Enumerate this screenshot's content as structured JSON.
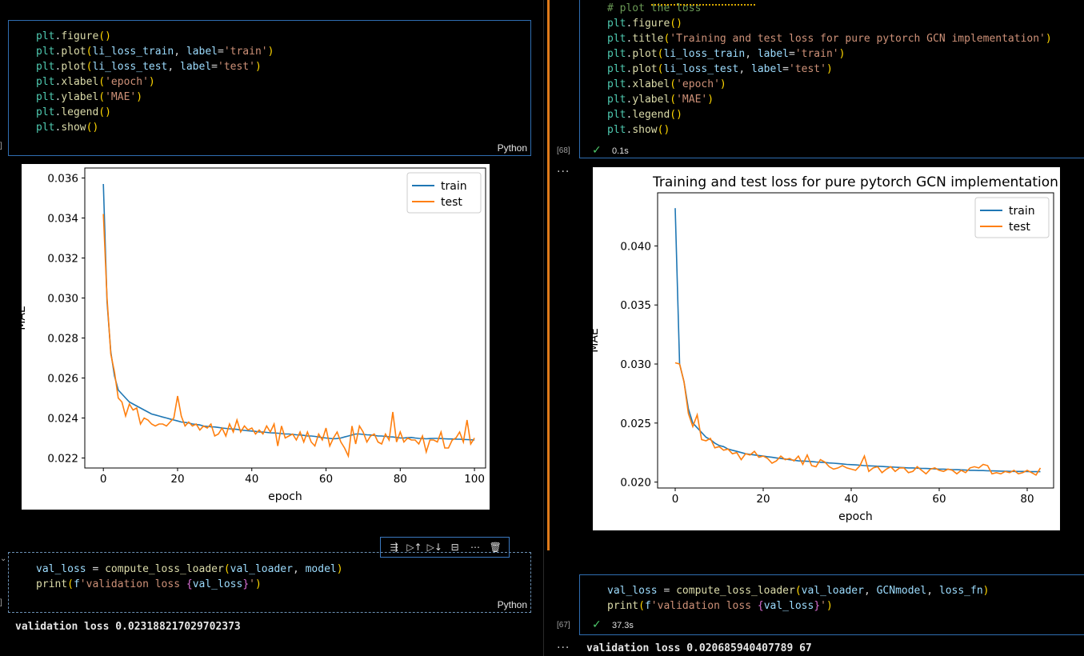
{
  "left": {
    "cell1": {
      "lines": [
        [
          [
            "plt",
            "obj"
          ],
          [
            ".",
            "dot"
          ],
          [
            "figure",
            "fn"
          ],
          [
            "()",
            "p"
          ]
        ],
        [
          [
            "plt",
            "obj"
          ],
          [
            ".",
            "dot"
          ],
          [
            "plot",
            "fn"
          ],
          [
            "(",
            "p"
          ],
          [
            "li_loss_train",
            "var"
          ],
          [
            ", ",
            "dot"
          ],
          [
            "label",
            "var"
          ],
          [
            "=",
            "dot"
          ],
          [
            "'train'",
            "str"
          ],
          [
            ")",
            "p"
          ]
        ],
        [
          [
            "plt",
            "obj"
          ],
          [
            ".",
            "dot"
          ],
          [
            "plot",
            "fn"
          ],
          [
            "(",
            "p"
          ],
          [
            "li_loss_test",
            "var"
          ],
          [
            ", ",
            "dot"
          ],
          [
            "label",
            "var"
          ],
          [
            "=",
            "dot"
          ],
          [
            "'test'",
            "str"
          ],
          [
            ")",
            "p"
          ]
        ],
        [
          [
            "plt",
            "obj"
          ],
          [
            ".",
            "dot"
          ],
          [
            "xlabel",
            "fn"
          ],
          [
            "(",
            "p"
          ],
          [
            "'epoch'",
            "str"
          ],
          [
            ")",
            "p"
          ]
        ],
        [
          [
            "plt",
            "obj"
          ],
          [
            ".",
            "dot"
          ],
          [
            "ylabel",
            "fn"
          ],
          [
            "(",
            "p"
          ],
          [
            "'MAE'",
            "str"
          ],
          [
            ")",
            "p"
          ]
        ],
        [
          [
            "plt",
            "obj"
          ],
          [
            ".",
            "dot"
          ],
          [
            "legend",
            "fn"
          ],
          [
            "()",
            "p"
          ]
        ],
        [
          [
            "plt",
            "obj"
          ],
          [
            ".",
            "dot"
          ],
          [
            "show",
            "fn"
          ],
          [
            "()",
            "p"
          ]
        ]
      ],
      "language": "Python",
      "bracket": "]"
    },
    "cell2": {
      "lines": [
        [
          [
            "val_loss",
            "var"
          ],
          [
            " = ",
            "dot"
          ],
          [
            "compute_loss_loader",
            "fn"
          ],
          [
            "(",
            "p"
          ],
          [
            "val_loader",
            "var"
          ],
          [
            ", ",
            "dot"
          ],
          [
            "model",
            "var"
          ],
          [
            ")",
            "p"
          ]
        ],
        [
          [
            "print",
            "fn"
          ],
          [
            "(",
            "p"
          ],
          [
            "f",
            "var"
          ],
          [
            "'validation loss ",
            "str"
          ],
          [
            "{",
            "p2"
          ],
          [
            "val_loss",
            "var"
          ],
          [
            "}",
            "p2"
          ],
          [
            "'",
            "str"
          ],
          [
            ")",
            "p"
          ]
        ]
      ],
      "language": "Python",
      "bracket": "]",
      "output": "validation loss 0.023188217029702373"
    },
    "toolbar": {
      "buttons": [
        {
          "name": "run-above-icon",
          "glyph": "⇶"
        },
        {
          "name": "execute-above-icon",
          "glyph": "▷↑"
        },
        {
          "name": "execute-below-icon",
          "glyph": "▷↓"
        },
        {
          "name": "split-cell-icon",
          "glyph": "⊟"
        },
        {
          "name": "more-actions-icon",
          "glyph": "⋯"
        },
        {
          "name": "delete-cell-icon",
          "glyph": "🗑"
        }
      ]
    }
  },
  "right": {
    "cell1": {
      "lines": [
        [
          [
            "# plot the loss",
            "cm"
          ]
        ],
        [
          [
            "plt",
            "obj"
          ],
          [
            ".",
            "dot"
          ],
          [
            "figure",
            "fn"
          ],
          [
            "()",
            "p"
          ]
        ],
        [
          [
            "plt",
            "obj"
          ],
          [
            ".",
            "dot"
          ],
          [
            "title",
            "fn"
          ],
          [
            "(",
            "p"
          ],
          [
            "'Training and test loss for pure pytorch GCN implementation'",
            "str"
          ],
          [
            ")",
            "p"
          ]
        ],
        [
          [
            "plt",
            "obj"
          ],
          [
            ".",
            "dot"
          ],
          [
            "plot",
            "fn"
          ],
          [
            "(",
            "p"
          ],
          [
            "li_loss_train",
            "var"
          ],
          [
            ", ",
            "dot"
          ],
          [
            "label",
            "var"
          ],
          [
            "=",
            "dot"
          ],
          [
            "'train'",
            "str"
          ],
          [
            ")",
            "p"
          ]
        ],
        [
          [
            "plt",
            "obj"
          ],
          [
            ".",
            "dot"
          ],
          [
            "plot",
            "fn"
          ],
          [
            "(",
            "p"
          ],
          [
            "li_loss_test",
            "var"
          ],
          [
            ", ",
            "dot"
          ],
          [
            "label",
            "var"
          ],
          [
            "=",
            "dot"
          ],
          [
            "'test'",
            "str"
          ],
          [
            ")",
            "p"
          ]
        ],
        [
          [
            "plt",
            "obj"
          ],
          [
            ".",
            "dot"
          ],
          [
            "xlabel",
            "fn"
          ],
          [
            "(",
            "p"
          ],
          [
            "'epoch'",
            "str"
          ],
          [
            ")",
            "p"
          ]
        ],
        [
          [
            "plt",
            "obj"
          ],
          [
            ".",
            "dot"
          ],
          [
            "ylabel",
            "fn"
          ],
          [
            "(",
            "p"
          ],
          [
            "'MAE'",
            "str"
          ],
          [
            ")",
            "p"
          ]
        ],
        [
          [
            "plt",
            "obj"
          ],
          [
            ".",
            "dot"
          ],
          [
            "legend",
            "fn"
          ],
          [
            "()",
            "p"
          ]
        ],
        [
          [
            "plt",
            "obj"
          ],
          [
            ".",
            "dot"
          ],
          [
            "show",
            "fn"
          ],
          [
            "()",
            "p"
          ]
        ]
      ],
      "exec_count": "[68]",
      "time": "0.1s",
      "output_dots": "···"
    },
    "cell2": {
      "lines": [
        [
          [
            "val_loss",
            "var"
          ],
          [
            " = ",
            "dot"
          ],
          [
            "compute_loss_loader",
            "fn"
          ],
          [
            "(",
            "p"
          ],
          [
            "val_loader",
            "var"
          ],
          [
            ", ",
            "dot"
          ],
          [
            "GCNmodel",
            "var"
          ],
          [
            ", ",
            "dot"
          ],
          [
            "loss_fn",
            "var"
          ],
          [
            ")",
            "p"
          ]
        ],
        [
          [
            "print",
            "fn"
          ],
          [
            "(",
            "p"
          ],
          [
            "f",
            "var"
          ],
          [
            "'validation loss ",
            "str"
          ],
          [
            "{",
            "p2"
          ],
          [
            "val_loss",
            "var"
          ],
          [
            "}",
            "p2"
          ],
          [
            "'",
            "str"
          ],
          [
            ")",
            "p"
          ]
        ]
      ],
      "exec_count": "[67]",
      "time": "37.3s",
      "output_dots": "···",
      "output": "validation loss 0.020685940407789 67"
    }
  },
  "colors": {
    "train": "#1f77b4",
    "test": "#ff7f0e",
    "cell_border": "#2f6db0",
    "divider": "#e07b1a"
  },
  "chart_data": [
    {
      "type": "line",
      "title": "",
      "xlabel": "epoch",
      "ylabel": "MAE",
      "xlim": [
        -5,
        103
      ],
      "ylim": [
        0.0215,
        0.0365
      ],
      "xticks": [
        0,
        20,
        40,
        60,
        80,
        100
      ],
      "xtick_labels": [
        "0",
        "20",
        "40",
        "60",
        "80",
        "100"
      ],
      "yticks": [
        0.022,
        0.024,
        0.026,
        0.028,
        0.03,
        0.032,
        0.034,
        0.036
      ],
      "ytick_labels": [
        "0.022",
        "0.024",
        "0.026",
        "0.028",
        "0.030",
        "0.032",
        "0.034",
        "0.036"
      ],
      "legend": "top-right",
      "series": [
        {
          "name": "train",
          "color": "#1f77b4",
          "values": [
            0.0357,
            0.0298,
            0.0273,
            0.0261,
            0.0254,
            0.0252,
            0.025,
            0.0248,
            0.0247,
            0.0246,
            0.0245,
            0.0244,
            0.0243,
            0.0242,
            0.02415,
            0.0241,
            0.02405,
            0.024,
            0.02395,
            0.0239,
            0.02385,
            0.0238,
            0.02378,
            0.02375,
            0.0237,
            0.02368,
            0.02365,
            0.0236,
            0.02358,
            0.02356,
            0.02355,
            0.02353,
            0.0235,
            0.02348,
            0.02346,
            0.02345,
            0.02343,
            0.0234,
            0.02338,
            0.02336,
            0.02335,
            0.02333,
            0.0233,
            0.0233,
            0.02328,
            0.02326,
            0.02325,
            0.02324,
            0.02322,
            0.0232,
            0.0232,
            0.02318,
            0.02316,
            0.02315,
            0.02313,
            0.0231,
            0.0231,
            0.02308,
            0.02305,
            0.02302,
            0.023,
            0.02298,
            0.02296,
            0.02297,
            0.023,
            0.02305,
            0.0231,
            0.02315,
            0.0232,
            0.0232,
            0.02318,
            0.02316,
            0.02315,
            0.02313,
            0.0231,
            0.0231,
            0.02308,
            0.02306,
            0.02305,
            0.02303,
            0.023,
            0.023,
            0.02302,
            0.02303,
            0.023,
            0.02298,
            0.02297,
            0.02296,
            0.02297,
            0.02298,
            0.02298,
            0.02297,
            0.02296,
            0.02295,
            0.02295,
            0.02294,
            0.02294,
            0.02293,
            0.02292,
            0.02291,
            0.0229
          ]
        },
        {
          "name": "test",
          "color": "#ff7f0e",
          "values": [
            0.0342,
            0.03,
            0.0272,
            0.0263,
            0.025,
            0.0248,
            0.0241,
            0.0247,
            0.0244,
            0.0245,
            0.0237,
            0.024,
            0.0239,
            0.0237,
            0.0236,
            0.0237,
            0.0237,
            0.0236,
            0.0238,
            0.024,
            0.0251,
            0.0241,
            0.0236,
            0.0238,
            0.0236,
            0.0237,
            0.0234,
            0.0236,
            0.0235,
            0.0237,
            0.0231,
            0.0232,
            0.0235,
            0.0231,
            0.0237,
            0.0233,
            0.0239,
            0.0233,
            0.0236,
            0.0234,
            0.0235,
            0.0232,
            0.0234,
            0.0232,
            0.0236,
            0.0233,
            0.0237,
            0.0226,
            0.0236,
            0.023,
            0.0231,
            0.0232,
            0.0229,
            0.0233,
            0.0228,
            0.0233,
            0.0228,
            0.0226,
            0.0232,
            0.0229,
            0.0235,
            0.0226,
            0.023,
            0.0233,
            0.0228,
            0.0225,
            0.0221,
            0.0236,
            0.0227,
            0.0236,
            0.0233,
            0.0228,
            0.0231,
            0.0232,
            0.0228,
            0.0227,
            0.0232,
            0.0229,
            0.0243,
            0.0228,
            0.0233,
            0.0228,
            0.023,
            0.0229,
            0.0229,
            0.0227,
            0.0231,
            0.0223,
            0.0229,
            0.0229,
            0.0228,
            0.0233,
            0.0225,
            0.0225,
            0.0229,
            0.023,
            0.0233,
            0.0228,
            0.0239,
            0.0227,
            0.023
          ]
        }
      ]
    },
    {
      "type": "line",
      "title": "Training and test loss for pure pytorch GCN implementation",
      "xlabel": "epoch",
      "ylabel": "MAE",
      "xlim": [
        -4,
        86
      ],
      "ylim": [
        0.0195,
        0.0445
      ],
      "xticks": [
        0,
        20,
        40,
        60,
        80
      ],
      "xtick_labels": [
        "0",
        "20",
        "40",
        "60",
        "80"
      ],
      "yticks": [
        0.02,
        0.025,
        0.03,
        0.035,
        0.04
      ],
      "ytick_labels": [
        "0.020",
        "0.025",
        "0.030",
        "0.035",
        "0.040"
      ],
      "legend": "top-right",
      "series": [
        {
          "name": "train",
          "color": "#1f77b4",
          "values": [
            0.0432,
            0.03,
            0.0285,
            0.0262,
            0.025,
            0.0246,
            0.0242,
            0.0238,
            0.0236,
            0.0233,
            0.0231,
            0.023,
            0.0228,
            0.0227,
            0.0226,
            0.0225,
            0.0224,
            0.02235,
            0.0223,
            0.02225,
            0.0222,
            0.02215,
            0.0221,
            0.02205,
            0.022,
            0.02195,
            0.0219,
            0.02185,
            0.0218,
            0.02178,
            0.02176,
            0.02174,
            0.0217,
            0.02168,
            0.02166,
            0.02162,
            0.0216,
            0.02157,
            0.02154,
            0.0215,
            0.02148,
            0.02146,
            0.02143,
            0.0214,
            0.02138,
            0.02136,
            0.02134,
            0.02132,
            0.0213,
            0.02128,
            0.02126,
            0.02124,
            0.02122,
            0.0212,
            0.0212,
            0.02118,
            0.02116,
            0.02115,
            0.02114,
            0.02112,
            0.0211,
            0.0211,
            0.02108,
            0.02106,
            0.02105,
            0.02104,
            0.02102,
            0.021,
            0.021,
            0.02098,
            0.02098,
            0.02096,
            0.02095,
            0.02094,
            0.02093,
            0.02092,
            0.02091,
            0.0209,
            0.0209,
            0.0209,
            0.02089,
            0.02088,
            0.02088,
            0.02088
          ]
        },
        {
          "name": "test",
          "color": "#ff7f0e",
          "values": [
            0.0301,
            0.03,
            0.0285,
            0.0258,
            0.0247,
            0.0257,
            0.0236,
            0.0235,
            0.0237,
            0.0229,
            0.023,
            0.0227,
            0.0228,
            0.0224,
            0.0225,
            0.0219,
            0.0224,
            0.0223,
            0.0226,
            0.0221,
            0.0222,
            0.022,
            0.0216,
            0.0218,
            0.0222,
            0.0219,
            0.022,
            0.0218,
            0.0222,
            0.0215,
            0.0223,
            0.0214,
            0.0213,
            0.0219,
            0.0217,
            0.0213,
            0.0211,
            0.0212,
            0.0214,
            0.0212,
            0.0211,
            0.021,
            0.0214,
            0.0222,
            0.0209,
            0.0212,
            0.0213,
            0.0208,
            0.0211,
            0.0213,
            0.0209,
            0.0212,
            0.0212,
            0.0208,
            0.0209,
            0.0213,
            0.021,
            0.0207,
            0.0211,
            0.0212,
            0.021,
            0.0209,
            0.0211,
            0.021,
            0.0207,
            0.021,
            0.0208,
            0.0212,
            0.0213,
            0.0212,
            0.0215,
            0.0214,
            0.0207,
            0.0208,
            0.0207,
            0.0209,
            0.0208,
            0.021,
            0.0207,
            0.0208,
            0.021,
            0.0208,
            0.0206,
            0.0212
          ]
        }
      ]
    }
  ]
}
